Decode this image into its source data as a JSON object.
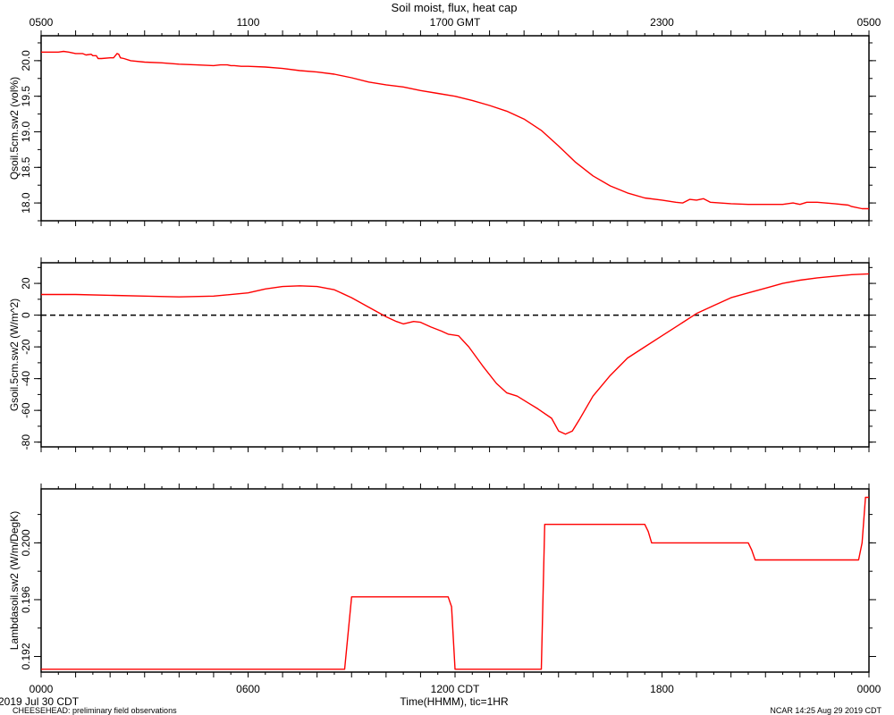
{
  "chart_data": {
    "type": "line",
    "title": "Soil moist, flux, heat cap",
    "top_axis": {
      "label": "GMT",
      "ticks": [
        {
          "t": 0,
          "label": "0500"
        },
        {
          "t": 6,
          "label": "1100"
        },
        {
          "t": 12,
          "label": "1700 GMT"
        },
        {
          "t": 18,
          "label": "2300"
        },
        {
          "t": 24,
          "label": "0500"
        }
      ]
    },
    "bottom_axis": {
      "xlabel": "Time(HHMM), tic=1HR",
      "xlim": [
        0,
        24
      ],
      "ticks": [
        {
          "t": 0,
          "label": "0000"
        },
        {
          "t": 6,
          "label": "0600"
        },
        {
          "t": 12,
          "label": "1200 CDT"
        },
        {
          "t": 18,
          "label": "1800"
        },
        {
          "t": 24,
          "label": "0000"
        }
      ]
    },
    "panels": [
      {
        "id": "qsoil",
        "ylabel": "Qsoil.5cm.sw2 (vol%)",
        "ylim": [
          17.75,
          20.35
        ],
        "yticks": [
          {
            "v": 18.0,
            "label": "18.0"
          },
          {
            "v": 18.5,
            "label": "18.5"
          },
          {
            "v": 19.0,
            "label": "19.0"
          },
          {
            "v": 19.5,
            "label": "19.5"
          },
          {
            "v": 20.0,
            "label": "20.0"
          }
        ],
        "minor_step": 0.25,
        "zero_line": false,
        "series": [
          {
            "color": "#ff0000",
            "points": [
              [
                0,
                20.12
              ],
              [
                0.5,
                20.12
              ],
              [
                0.65,
                20.13
              ],
              [
                0.8,
                20.12
              ],
              [
                1.0,
                20.1
              ],
              [
                1.2,
                20.1
              ],
              [
                1.3,
                20.08
              ],
              [
                1.45,
                20.09
              ],
              [
                1.5,
                20.07
              ],
              [
                1.6,
                20.07
              ],
              [
                1.65,
                20.03
              ],
              [
                1.75,
                20.03
              ],
              [
                2.0,
                20.04
              ],
              [
                2.1,
                20.04
              ],
              [
                2.2,
                20.1
              ],
              [
                2.25,
                20.09
              ],
              [
                2.3,
                20.04
              ],
              [
                2.4,
                20.03
              ],
              [
                2.6,
                20.0
              ],
              [
                3.0,
                19.98
              ],
              [
                3.5,
                19.97
              ],
              [
                4.0,
                19.95
              ],
              [
                4.5,
                19.94
              ],
              [
                5.0,
                19.93
              ],
              [
                5.2,
                19.94
              ],
              [
                5.4,
                19.94
              ],
              [
                5.5,
                19.93
              ],
              [
                5.6,
                19.93
              ],
              [
                5.8,
                19.92
              ],
              [
                6.0,
                19.92
              ],
              [
                6.5,
                19.91
              ],
              [
                7.0,
                19.89
              ],
              [
                7.5,
                19.86
              ],
              [
                8.0,
                19.84
              ],
              [
                8.5,
                19.81
              ],
              [
                9.0,
                19.76
              ],
              [
                9.5,
                19.7
              ],
              [
                10.0,
                19.66
              ],
              [
                10.5,
                19.63
              ],
              [
                11.0,
                19.58
              ],
              [
                11.5,
                19.54
              ],
              [
                12.0,
                19.5
              ],
              [
                12.5,
                19.44
              ],
              [
                13.0,
                19.37
              ],
              [
                13.5,
                19.29
              ],
              [
                14.0,
                19.18
              ],
              [
                14.5,
                19.02
              ],
              [
                15.0,
                18.8
              ],
              [
                15.5,
                18.57
              ],
              [
                16.0,
                18.38
              ],
              [
                16.5,
                18.24
              ],
              [
                17.0,
                18.14
              ],
              [
                17.5,
                18.07
              ],
              [
                18.0,
                18.04
              ],
              [
                18.4,
                18.01
              ],
              [
                18.6,
                18.0
              ],
              [
                18.8,
                18.05
              ],
              [
                19.0,
                18.04
              ],
              [
                19.2,
                18.06
              ],
              [
                19.4,
                18.01
              ],
              [
                20.0,
                17.99
              ],
              [
                20.5,
                17.98
              ],
              [
                21.0,
                17.98
              ],
              [
                21.5,
                17.98
              ],
              [
                21.8,
                18.0
              ],
              [
                22.0,
                17.98
              ],
              [
                22.2,
                18.01
              ],
              [
                22.5,
                18.01
              ],
              [
                23.0,
                17.99
              ],
              [
                23.4,
                17.97
              ],
              [
                23.5,
                17.95
              ],
              [
                23.8,
                17.92
              ],
              [
                24.0,
                17.92
              ]
            ]
          }
        ]
      },
      {
        "id": "gsoil",
        "ylabel": "Gsoil.5cm.sw2 (W/m^2)",
        "ylim": [
          -83,
          33
        ],
        "yticks": [
          {
            "v": -80,
            "label": "-80"
          },
          {
            "v": -60,
            "label": "-60"
          },
          {
            "v": -40,
            "label": "-40"
          },
          {
            "v": -20,
            "label": "-20"
          },
          {
            "v": 0,
            "label": "0"
          },
          {
            "v": 20,
            "label": "20"
          }
        ],
        "minor_step": 10,
        "zero_line": true,
        "series": [
          {
            "color": "#ff0000",
            "points": [
              [
                0,
                13
              ],
              [
                1,
                13
              ],
              [
                2,
                12.5
              ],
              [
                3,
                12
              ],
              [
                4,
                11.5
              ],
              [
                5,
                12
              ],
              [
                6,
                14
              ],
              [
                6.5,
                16.5
              ],
              [
                7,
                18
              ],
              [
                7.5,
                18.5
              ],
              [
                8,
                18
              ],
              [
                8.5,
                16
              ],
              [
                9,
                11
              ],
              [
                9.5,
                5
              ],
              [
                10,
                -1
              ],
              [
                10.3,
                -4
              ],
              [
                10.5,
                -5.5
              ],
              [
                10.8,
                -4
              ],
              [
                11,
                -4.5
              ],
              [
                11.3,
                -7.5
              ],
              [
                11.6,
                -10
              ],
              [
                11.8,
                -12
              ],
              [
                12.1,
                -13
              ],
              [
                12.4,
                -20
              ],
              [
                12.8,
                -32
              ],
              [
                13.2,
                -43
              ],
              [
                13.5,
                -49
              ],
              [
                13.8,
                -51
              ],
              [
                14.1,
                -55
              ],
              [
                14.4,
                -59
              ],
              [
                14.8,
                -65
              ],
              [
                15.0,
                -73
              ],
              [
                15.2,
                -75
              ],
              [
                15.4,
                -73
              ],
              [
                15.6,
                -66
              ],
              [
                16.0,
                -51
              ],
              [
                16.5,
                -38
              ],
              [
                17.0,
                -27
              ],
              [
                17.5,
                -20
              ],
              [
                18.0,
                -13
              ],
              [
                18.5,
                -6
              ],
              [
                19.0,
                1
              ],
              [
                19.5,
                6
              ],
              [
                20.0,
                11
              ],
              [
                20.5,
                14
              ],
              [
                21.0,
                17
              ],
              [
                21.5,
                20
              ],
              [
                22.0,
                22
              ],
              [
                22.5,
                23.5
              ],
              [
                23.0,
                24.5
              ],
              [
                23.5,
                25.5
              ],
              [
                24.0,
                26
              ]
            ]
          }
        ]
      },
      {
        "id": "lambda",
        "ylabel": "Lambdasoil.sw2 (W/m/DegK)",
        "ylim": [
          0.1909,
          0.2038
        ],
        "yticks": [
          {
            "v": 0.192,
            "label": "0.192"
          },
          {
            "v": 0.196,
            "label": "0.196"
          },
          {
            "v": 0.2,
            "label": "0.200"
          }
        ],
        "minor_step": 0.002,
        "zero_line": false,
        "series": [
          {
            "color": "#ff0000",
            "points": [
              [
                0,
                0.1911
              ],
              [
                8.8,
                0.1911
              ],
              [
                9.0,
                0.1962
              ],
              [
                11.8,
                0.1962
              ],
              [
                11.9,
                0.1955
              ],
              [
                12.0,
                0.1911
              ],
              [
                14.5,
                0.1911
              ],
              [
                14.6,
                0.2013
              ],
              [
                17.5,
                0.2013
              ],
              [
                17.6,
                0.2008
              ],
              [
                17.7,
                0.2
              ],
              [
                20.5,
                0.2
              ],
              [
                20.6,
                0.1995
              ],
              [
                20.7,
                0.1988
              ],
              [
                23.7,
                0.1988
              ],
              [
                23.8,
                0.2
              ],
              [
                23.9,
                0.2032
              ],
              [
                24.0,
                0.2032
              ]
            ]
          }
        ]
      }
    ],
    "footer": {
      "date": "2019 Jul 30 CDT",
      "project": "CHEESEHEAD: preliminary field observations",
      "stamp": "NCAR 14:25 Aug 29 2019 CDT"
    }
  }
}
